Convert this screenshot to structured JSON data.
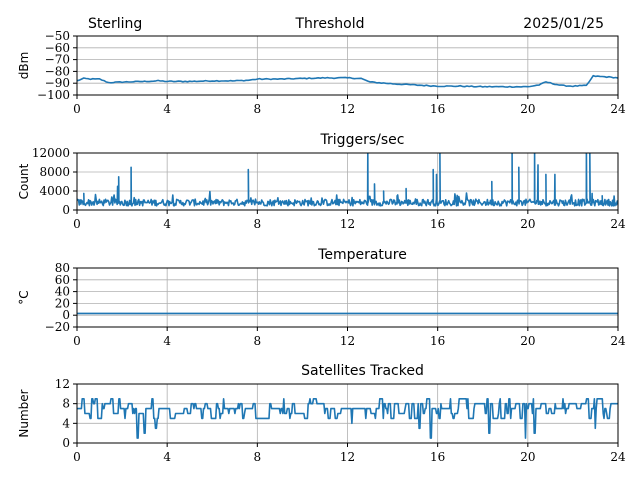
{
  "header": {
    "left": "Sterling",
    "center": "Threshold",
    "right": "2025/01/25"
  },
  "colors": {
    "series": "#1f77b4",
    "grid": "#b0b0b0"
  },
  "chart_data": [
    {
      "type": "line",
      "title": "",
      "ylabel": "dBm",
      "xlim": [
        0,
        24
      ],
      "ylim": [
        -100,
        -50
      ],
      "xticks": [
        0,
        4,
        8,
        12,
        16,
        20,
        24
      ],
      "yticks": [
        -100,
        -90,
        -80,
        -70,
        -60,
        -50
      ],
      "ytick_labels": [
        "−100",
        "−90",
        "−80",
        "−70",
        "−60",
        "−50"
      ],
      "grid": true,
      "series": [
        {
          "x": [
            0,
            0.3,
            0.6,
            1.0,
            1.4,
            2.0,
            3.0,
            3.6,
            4.0,
            5.0,
            6.0,
            7.0,
            7.6,
            8.0,
            9.0,
            10.0,
            11.0,
            12.0,
            12.6,
            13.0,
            14.0,
            15.0,
            16.0,
            17.0,
            18.0,
            19.0,
            20.0,
            20.5,
            20.8,
            21.5,
            22.0,
            22.6,
            22.9,
            23.4,
            24.0
          ],
          "y": [
            -88,
            -86,
            -86.5,
            -86.5,
            -89.5,
            -89,
            -88.5,
            -88,
            -88.5,
            -88.5,
            -88,
            -88,
            -87.5,
            -86.5,
            -86.5,
            -86,
            -85.5,
            -85.5,
            -86,
            -89,
            -90.5,
            -91.5,
            -92.5,
            -92.5,
            -93,
            -93,
            -93,
            -91.5,
            -89,
            -92,
            -92.5,
            -92,
            -84,
            -84.5,
            -85.5
          ]
        }
      ]
    },
    {
      "type": "line",
      "title": "Triggers/sec",
      "ylabel": "Count",
      "xlim": [
        0,
        24
      ],
      "ylim": [
        0,
        12000
      ],
      "xticks": [
        0,
        4,
        8,
        12,
        16,
        20,
        24
      ],
      "yticks": [
        0,
        4000,
        8000,
        12000
      ],
      "ytick_labels": [
        "0",
        "4000",
        "8000",
        "12000"
      ],
      "grid": true,
      "series": [
        {
          "baseline": 1500,
          "spikes": [
            [
              0.3,
              3500
            ],
            [
              1.8,
              5000
            ],
            [
              1.85,
              7000
            ],
            [
              2.4,
              9000
            ],
            [
              7.6,
              8500
            ],
            [
              12.9,
              12500
            ],
            [
              13.2,
              5500
            ],
            [
              13.6,
              4000
            ],
            [
              14.2,
              3000
            ],
            [
              14.6,
              4500
            ],
            [
              15.8,
              8500
            ],
            [
              15.95,
              7500
            ],
            [
              16.1,
              12000
            ],
            [
              16.2,
              7000
            ],
            [
              18.4,
              6000
            ],
            [
              19.3,
              12000
            ],
            [
              19.6,
              9000
            ],
            [
              20.3,
              12500
            ],
            [
              20.45,
              9500
            ],
            [
              20.8,
              7500
            ],
            [
              21.2,
              7500
            ],
            [
              22.6,
              12500
            ],
            [
              22.75,
              12500
            ],
            [
              22.85,
              3500
            ],
            [
              23.3,
              3000
            ]
          ]
        }
      ]
    },
    {
      "type": "line",
      "title": "Temperature",
      "ylabel": "°C",
      "xlim": [
        0,
        24
      ],
      "ylim": [
        -20,
        80
      ],
      "xticks": [
        0,
        4,
        8,
        12,
        16,
        20,
        24
      ],
      "yticks": [
        -20,
        0,
        20,
        40,
        60,
        80
      ],
      "ytick_labels": [
        "−20",
        "0",
        "20",
        "40",
        "60",
        "80"
      ],
      "grid": true,
      "series": [
        {
          "x": [
            0,
            24
          ],
          "y": [
            3,
            3
          ]
        }
      ]
    },
    {
      "type": "line",
      "title": "Satellites Tracked",
      "ylabel": "Number",
      "xlim": [
        0,
        24
      ],
      "ylim": [
        0,
        12
      ],
      "xticks": [
        0,
        4,
        8,
        12,
        16,
        20,
        24
      ],
      "yticks": [
        0,
        4,
        8,
        12
      ],
      "ytick_labels": [
        "0",
        "4",
        "8",
        "12"
      ],
      "grid": true,
      "series": [
        {
          "mean": 7,
          "range": [
            1,
            10
          ],
          "dips": [
            [
              2.7,
              1
            ],
            [
              3.0,
              2
            ],
            [
              3.5,
              3
            ],
            [
              12.2,
              4
            ],
            [
              15.7,
              1
            ],
            [
              15.2,
              3
            ],
            [
              19.9,
              1
            ],
            [
              18.3,
              2
            ],
            [
              20.3,
              2
            ],
            [
              23.0,
              3
            ]
          ]
        }
      ]
    }
  ]
}
